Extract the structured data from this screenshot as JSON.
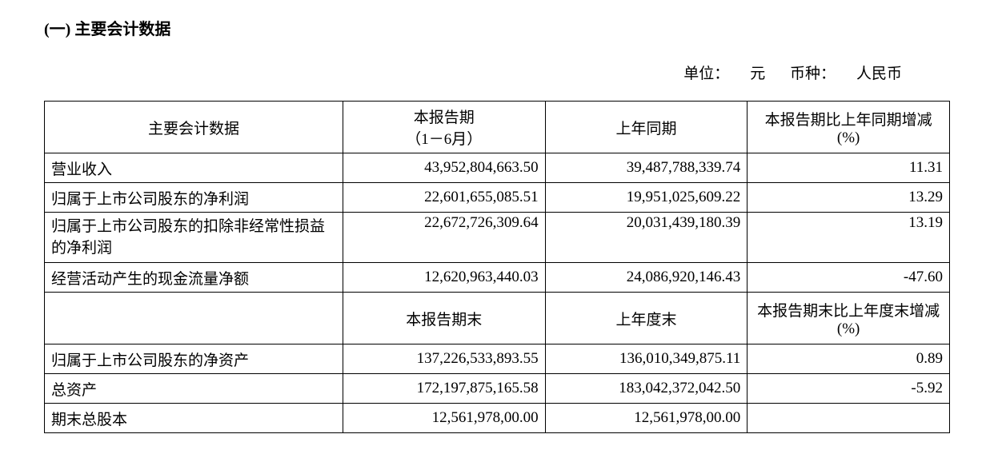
{
  "section_title": "(一) 主要会计数据",
  "unit_line": {
    "unit_label": "单位：",
    "unit_value": "元",
    "currency_label": "币种：",
    "currency_value": "人民币"
  },
  "table": {
    "header1": {
      "col1": "主要会计数据",
      "col2": "本报告期\n（1－6月）",
      "col3": "上年同期",
      "col4": "本报告期比上年同期增减(%)"
    },
    "rows1": [
      {
        "label": "营业收入",
        "current": "43,952,804,663.50",
        "prior": "39,487,788,339.74",
        "change": "11.31"
      },
      {
        "label": "归属于上市公司股东的净利润",
        "current": "22,601,655,085.51",
        "prior": "19,951,025,609.22",
        "change": "13.29"
      },
      {
        "label": "归属于上市公司股东的扣除非经常性损益的净利润",
        "current": "22,672,726,309.64",
        "prior": "20,031,439,180.39",
        "change": "13.19"
      },
      {
        "label": "经营活动产生的现金流量净额",
        "current": "12,620,963,440.03",
        "prior": "24,086,920,146.43",
        "change": "-47.60"
      }
    ],
    "header2": {
      "col1": "",
      "col2": "本报告期末",
      "col3": "上年度末",
      "col4": "本报告期末比上年度末增减(%)"
    },
    "rows2": [
      {
        "label": "归属于上市公司股东的净资产",
        "current": "137,226,533,893.55",
        "prior": "136,010,349,875.11",
        "change": "0.89"
      },
      {
        "label": "总资产",
        "current": "172,197,875,165.58",
        "prior": "183,042,372,042.50",
        "change": "-5.92"
      },
      {
        "label": "期末总股本",
        "current": "12,561,978,00.00",
        "prior": "12,561,978,00.00",
        "change": ""
      }
    ]
  }
}
